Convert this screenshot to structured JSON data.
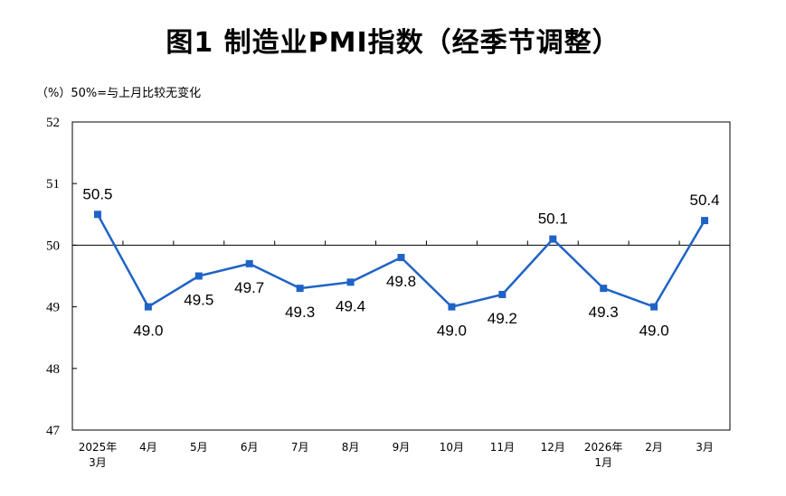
{
  "title": "图1  制造业PMI指数（经季节调整）",
  "unit_note": "（%）50%=与上月比较无变化",
  "chart_data": {
    "type": "line",
    "title": "图1  制造业PMI指数（经季节调整）",
    "ylabel": "（%）50%=与上月比较无变化",
    "xlabel": "",
    "ylim": [
      47,
      52
    ],
    "yticks": [
      47,
      48,
      49,
      50,
      51,
      52
    ],
    "reference_line": 50,
    "categories": [
      [
        "2025年",
        "3月"
      ],
      [
        "4月"
      ],
      [
        "5月"
      ],
      [
        "6月"
      ],
      [
        "7月"
      ],
      [
        "8月"
      ],
      [
        "9月"
      ],
      [
        "10月"
      ],
      [
        "11月"
      ],
      [
        "12月"
      ],
      [
        "2026年",
        "1月"
      ],
      [
        "2月"
      ],
      [
        "3月"
      ]
    ],
    "values": [
      50.5,
      49.0,
      49.5,
      49.7,
      49.3,
      49.4,
      49.8,
      49.0,
      49.2,
      50.1,
      49.3,
      49.0,
      50.4
    ],
    "value_labels": [
      "50.5",
      "49.0",
      "49.5",
      "49.7",
      "49.3",
      "49.4",
      "49.8",
      "49.0",
      "49.2",
      "50.1",
      "49.3",
      "49.0",
      "50.4"
    ],
    "label_position": [
      "above",
      "below",
      "below",
      "below",
      "below",
      "below",
      "below",
      "below",
      "below",
      "above",
      "below",
      "below",
      "above"
    ],
    "series_color": "#1f63c6",
    "grid": false,
    "legend": "none"
  }
}
